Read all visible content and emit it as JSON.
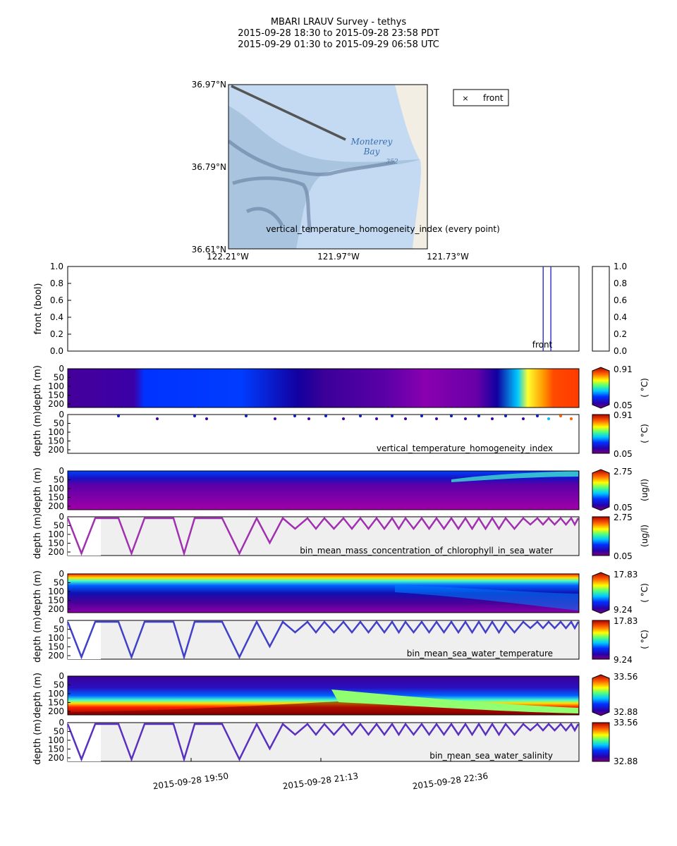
{
  "title": {
    "line1": "MBARI LRAUV Survey - tethys",
    "line2": "2015-09-28 18:30  to  2015-09-28 23:58 PDT",
    "line3": "2015-09-29 01:30  to  2015-09-29 06:58 UTC"
  },
  "map": {
    "lat_labels": [
      "36.97°N",
      "36.79°N",
      "36.61°N"
    ],
    "lon_labels": [
      "122.21°W",
      "121.97°W",
      "121.73°W"
    ],
    "place_label_1": "Monterey",
    "place_label_2": "Bay",
    "sounding": "352",
    "legend_label": "front",
    "caption": "vertical_temperature_homogeneity_index (every point)",
    "colors": {
      "water": "#c3daf2",
      "land": "#f3eee4",
      "track": "#555555"
    }
  },
  "time_ticks": [
    "2015-09-28 19:50",
    "2015-09-28 21:13",
    "2015-09-28 22:36"
  ],
  "depth_ticks": [
    "0",
    "50",
    "100",
    "150",
    "200"
  ],
  "depth_label": "depth (m)",
  "chart_data": [
    {
      "type": "line",
      "name_label": "front",
      "ylabel": "front (bool)",
      "ylim": [
        0,
        1
      ],
      "yticks": [
        "0.0",
        "0.2",
        "0.4",
        "0.6",
        "0.8",
        "1.0"
      ],
      "front_events_fraction_of_time": [
        0.93,
        0.945
      ],
      "colorbar_ticks": [
        "0.0",
        "0.2",
        "0.4",
        "0.6",
        "0.8",
        "1.0"
      ]
    },
    {
      "type": "heatmap",
      "variable": "vertical_temperature_homogeneity_index",
      "cbar_min": "0.05",
      "cbar_max": "0.91",
      "units": "( °C)"
    },
    {
      "type": "heatmap",
      "variable": "bin_mean_mass_concentration_of_chlorophyll_in_sea_water",
      "cbar_min": "0.05",
      "cbar_max": "2.75",
      "units": "(ug/l)"
    },
    {
      "type": "heatmap",
      "variable": "bin_mean_sea_water_temperature",
      "cbar_min": "9.24",
      "cbar_max": "17.83",
      "units": "( °C)"
    },
    {
      "type": "heatmap",
      "variable": "bin_mean_sea_water_salinity",
      "cbar_min": "32.88",
      "cbar_max": "33.56",
      "units": ""
    }
  ]
}
